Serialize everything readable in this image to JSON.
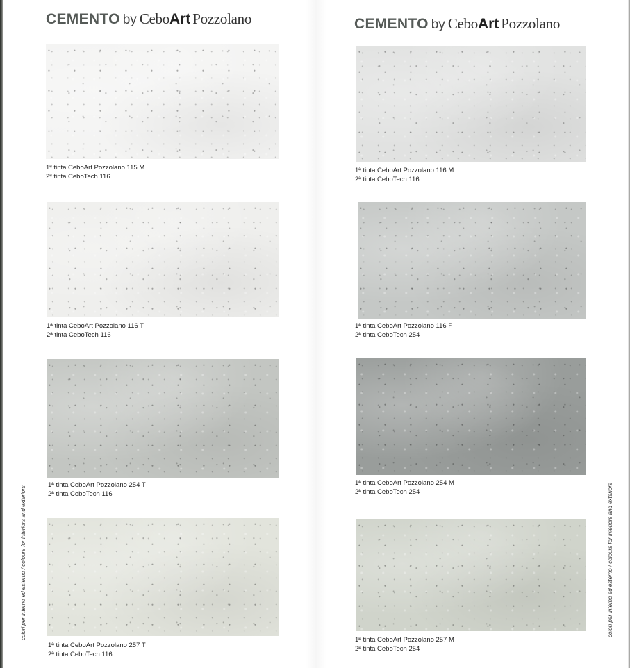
{
  "header": {
    "brand_word": "CEMENTO",
    "by_word": "by",
    "cebo_word": "Cebo",
    "art_word": "Art",
    "pozzolano_word": "Pozzolano"
  },
  "side_caption": "colori per interno ed esterno / colours for interiors and exteriors",
  "swatches": [
    {
      "line1": "1ª tinta CeboArt Pozzolano 115 M",
      "line2": "2ª tinta CeboTech 116",
      "color": "#f4f4f3"
    },
    {
      "line1": "1ª tinta CeboArt Pozzolano 116 T",
      "line2": "2ª tinta CeboTech 116",
      "color": "#efefed"
    },
    {
      "line1": "1ª tinta CeboArt Pozzolano 254 T",
      "line2": "2ª tinta CeboTech 116",
      "color": "#c3c6c2"
    },
    {
      "line1": "1ª tinta CeboArt Pozzolano 257 T",
      "line2": "2ª tinta CeboTech 116",
      "color": "#e2e4dc"
    },
    {
      "line1": "1ª tinta CeboArt Pozzolano 116 M",
      "line2": "2ª tinta CeboTech 116",
      "color": "#e1e2e1"
    },
    {
      "line1": "1ª tinta CeboArt Pozzolano 116 F",
      "line2": "2ª tinta CeboTech 254",
      "color": "#c5c8c6"
    },
    {
      "line1": "1ª tinta CeboArt Pozzolano 254 M",
      "line2": "2ª tinta CeboTech 254",
      "color": "#999d9b"
    },
    {
      "line1": "1ª tinta CeboArt Pozzolano 257 M",
      "line2": "2ª tinta CeboTech 254",
      "color": "#d0d4cb"
    }
  ]
}
